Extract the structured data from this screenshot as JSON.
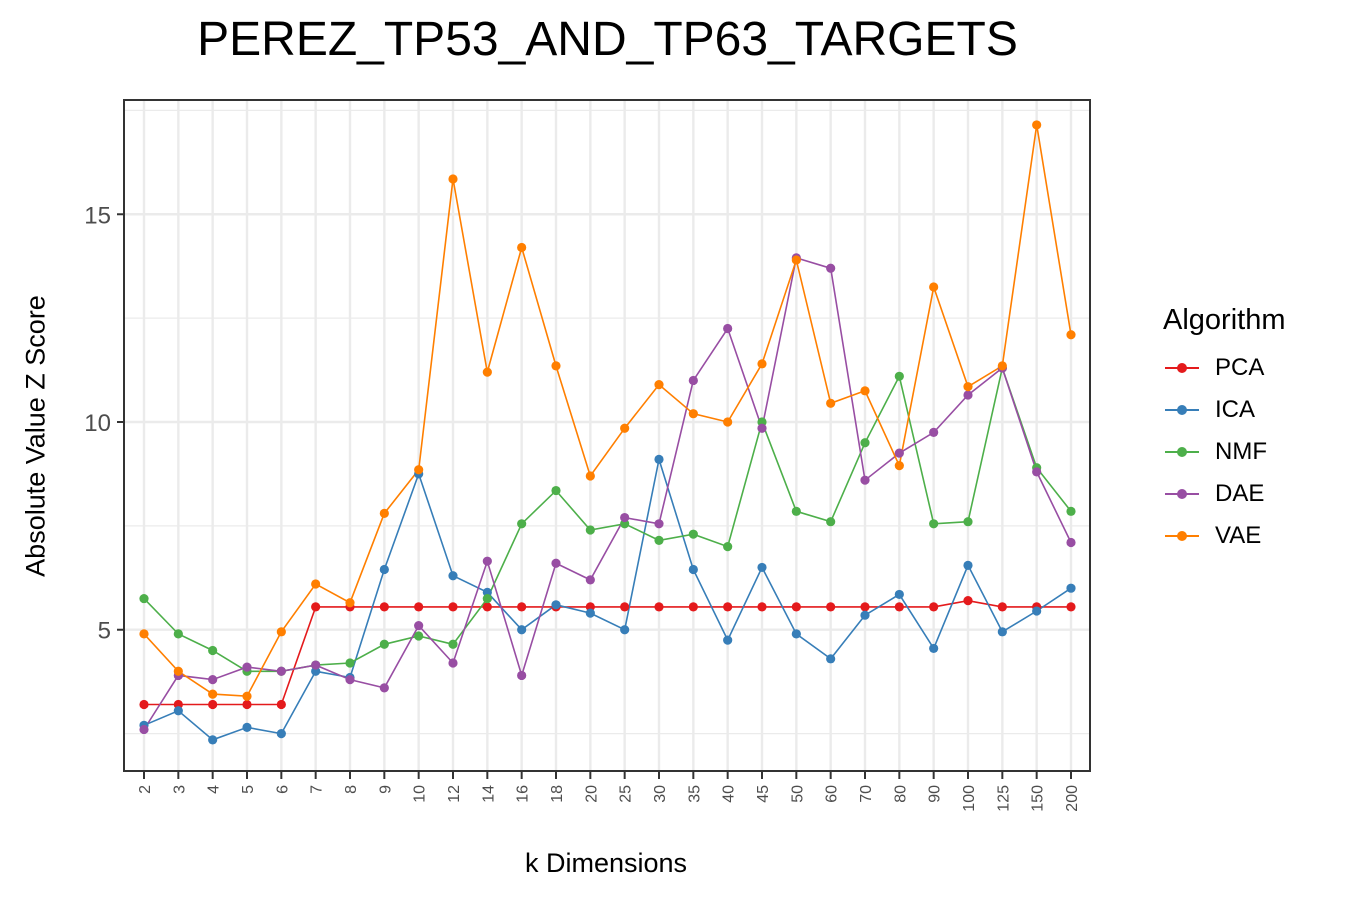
{
  "chart_data": {
    "type": "line",
    "title": "PEREZ_TP53_AND_TP63_TARGETS",
    "xlabel": "k Dimensions",
    "ylabel": "Absolute Value Z Score",
    "categories": [
      "2",
      "3",
      "4",
      "5",
      "6",
      "7",
      "8",
      "9",
      "10",
      "12",
      "14",
      "16",
      "18",
      "20",
      "25",
      "30",
      "35",
      "40",
      "45",
      "50",
      "60",
      "70",
      "80",
      "90",
      "100",
      "125",
      "150",
      "200"
    ],
    "yticks": [
      5,
      10,
      15
    ],
    "ylim": [
      1.6,
      17.75
    ],
    "grid": true,
    "legend": {
      "title": "Algorithm",
      "position": "right"
    },
    "series": [
      {
        "name": "PCA",
        "color": "#E41A1C",
        "values": [
          3.2,
          3.2,
          3.2,
          3.2,
          3.2,
          5.55,
          5.55,
          5.55,
          5.55,
          5.55,
          5.55,
          5.55,
          5.55,
          5.55,
          5.55,
          5.55,
          5.55,
          5.55,
          5.55,
          5.55,
          5.55,
          5.55,
          5.55,
          5.55,
          5.7,
          5.55,
          5.55,
          5.55
        ]
      },
      {
        "name": "ICA",
        "color": "#377EB8",
        "values": [
          2.7,
          3.05,
          2.35,
          2.65,
          2.5,
          4.0,
          3.85,
          6.45,
          8.75,
          6.3,
          5.9,
          5.0,
          5.6,
          5.4,
          5.0,
          9.1,
          6.45,
          4.75,
          6.5,
          4.9,
          4.3,
          5.35,
          5.85,
          4.55,
          6.55,
          4.95,
          5.45,
          6.0
        ]
      },
      {
        "name": "NMF",
        "color": "#4DAF4A",
        "values": [
          5.75,
          4.9,
          4.5,
          4.0,
          4.0,
          4.15,
          4.2,
          4.65,
          4.85,
          4.65,
          5.75,
          7.55,
          8.35,
          7.4,
          7.55,
          7.15,
          7.3,
          7.0,
          10.0,
          7.85,
          7.6,
          9.5,
          11.1,
          7.55,
          7.6,
          11.3,
          8.9,
          7.85
        ]
      },
      {
        "name": "DAE",
        "color": "#984EA3",
        "values": [
          2.6,
          3.9,
          3.8,
          4.1,
          4.0,
          4.15,
          3.8,
          3.6,
          5.1,
          4.2,
          6.65,
          3.9,
          6.6,
          6.2,
          7.7,
          7.55,
          11.0,
          12.25,
          9.85,
          13.95,
          13.7,
          8.6,
          9.25,
          9.75,
          10.65,
          11.3,
          8.8,
          7.1
        ]
      },
      {
        "name": "VAE",
        "color": "#FF7F00",
        "values": [
          4.9,
          4.0,
          3.45,
          3.4,
          4.95,
          6.1,
          5.65,
          7.8,
          8.85,
          15.85,
          11.2,
          14.2,
          11.35,
          8.7,
          9.85,
          10.9,
          10.2,
          10.0,
          11.4,
          13.9,
          10.45,
          10.75,
          8.95,
          13.25,
          10.85,
          11.35,
          17.15,
          12.1
        ]
      }
    ]
  }
}
